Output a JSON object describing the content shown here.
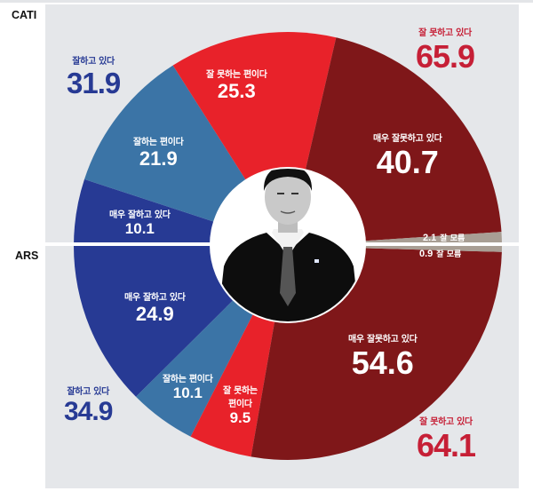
{
  "labels": {
    "top_method": "CATI",
    "bottom_method": "ARS"
  },
  "colors": {
    "background": "#e5e7ea",
    "very_well": "#273a94",
    "fairly_well": "#3b74a6",
    "somewhat_poorly": "#e8222a",
    "very_poorly": "#7f1719",
    "dont_know": "#a89e94",
    "positive_text": "#273a94",
    "negative_text": "#c61f36"
  },
  "summary": {
    "cati_positive": {
      "caption": "잘하고 있다",
      "value": "31.9"
    },
    "cati_negative": {
      "caption": "잘 못하고 있다",
      "value": "65.9"
    },
    "ars_positive": {
      "caption": "잘하고 있다",
      "value": "34.9"
    },
    "ars_negative": {
      "caption": "잘 못하고 있다",
      "value": "64.1"
    }
  },
  "slices": {
    "cati_very_well": {
      "caption": "매우 잘하고 있다",
      "value": "10.1"
    },
    "cati_fairly_well": {
      "caption": "잘하는 편이다",
      "value": "21.9"
    },
    "cati_somewhat_poorly": {
      "caption": "잘 못하는 편이다",
      "value": "25.3"
    },
    "cati_very_poorly": {
      "caption": "매우 잘못하고 있다",
      "value": "40.7"
    },
    "cati_dont_know": {
      "caption": "잘 모름",
      "value": "2.1"
    },
    "ars_very_well": {
      "caption": "매우 잘하고 있다",
      "value": "24.9"
    },
    "ars_fairly_well": {
      "caption": "잘하는 편이다",
      "value": "10.1"
    },
    "ars_somewhat_poorly": {
      "caption_line1": "잘 못하는",
      "caption_line2": "편이다",
      "value": "9.5"
    },
    "ars_very_poorly": {
      "caption": "매우 잘못하고 있다",
      "value": "54.6"
    },
    "ars_dont_know": {
      "caption": "잘 모름",
      "value": "0.9"
    }
  },
  "chart_data": {
    "type": "pie",
    "title": "",
    "layout": "split semicircles: CATI on top half, ARS on bottom half, central portrait photo",
    "categories": [
      "매우 잘하고 있다",
      "잘하는 편이다",
      "잘 못하는 편이다",
      "매우 잘못하고 있다",
      "잘 모름"
    ],
    "series": [
      {
        "name": "CATI",
        "values": [
          10.1,
          21.9,
          25.3,
          40.7,
          2.1
        ]
      },
      {
        "name": "ARS",
        "values": [
          24.9,
          10.1,
          9.5,
          54.6,
          0.9
        ]
      }
    ],
    "totals": [
      {
        "name": "CATI",
        "positive_label": "잘하고 있다",
        "positive": 31.9,
        "negative_label": "잘 못하고 있다",
        "negative": 65.9
      },
      {
        "name": "ARS",
        "positive_label": "잘하고 있다",
        "positive": 34.9,
        "negative_label": "잘 못하고 있다",
        "negative": 64.1
      }
    ],
    "colors": [
      "#273a94",
      "#3b74a6",
      "#e8222a",
      "#7f1719",
      "#a89e94"
    ],
    "unit": "%"
  }
}
